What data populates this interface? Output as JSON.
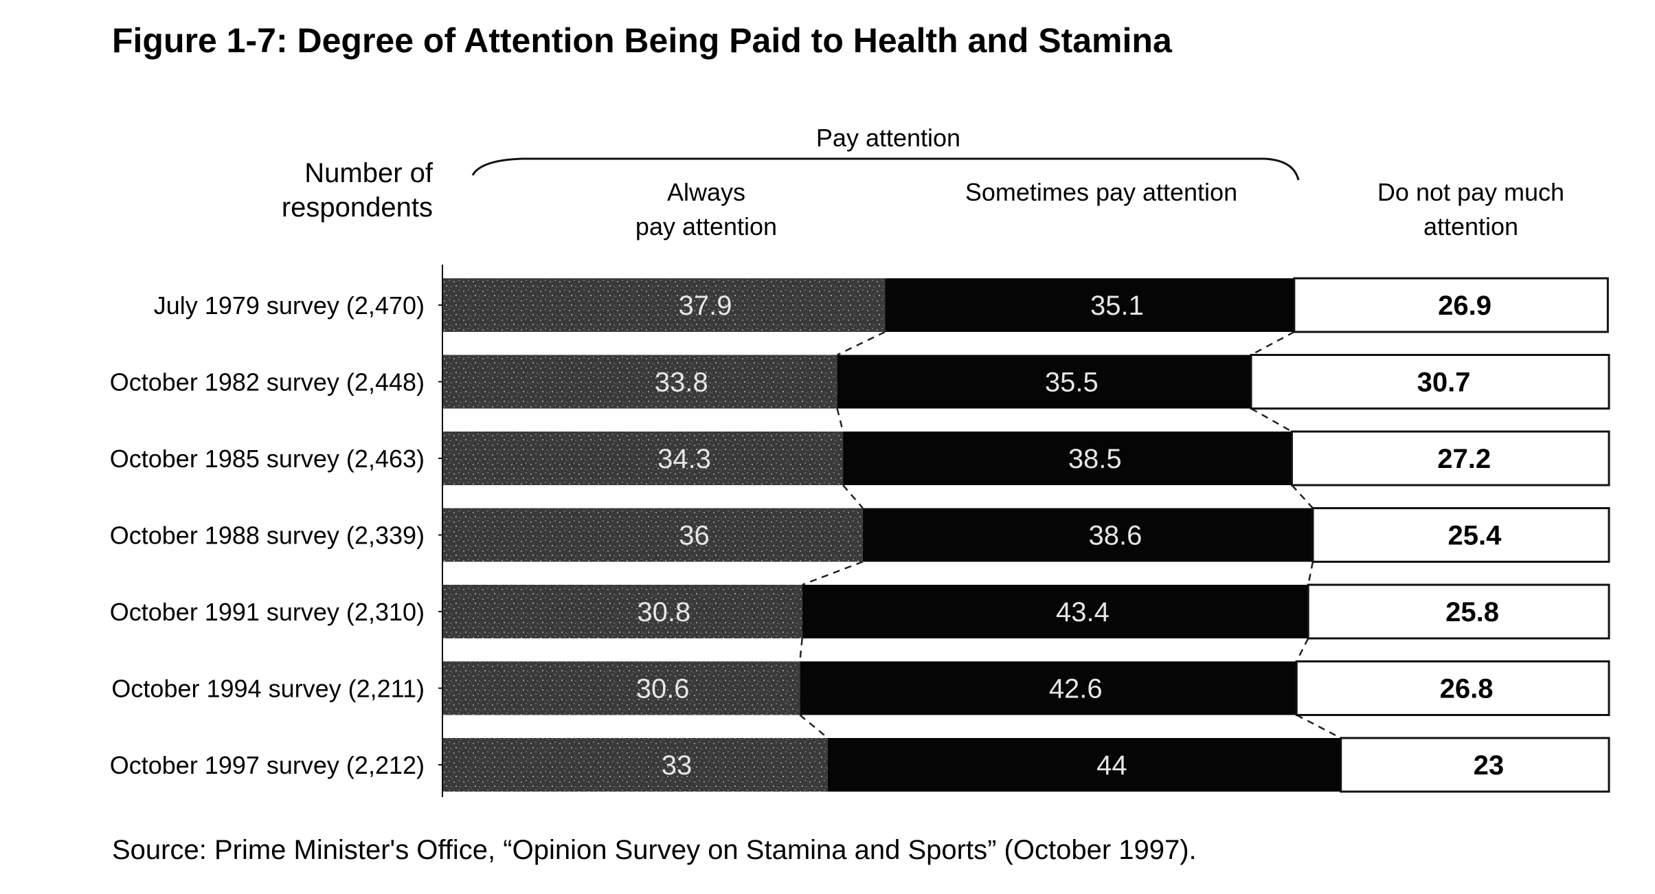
{
  "title": "Figure 1-7: Degree of Attention Being Paid to Health and Stamina",
  "source": "Source: Prime Minister's Office, “Opinion Survey on Stamina and Sports” (October 1997).",
  "colors": {
    "always": "#3a3a3a",
    "sometimes": "#050505",
    "not_much": "#ffffff",
    "outline": "#111111",
    "label_light": "#e6e6e6"
  },
  "chart_data": {
    "type": "bar",
    "orientation": "horizontal",
    "stacked": true,
    "percent": true,
    "row_header": "Number of respondents",
    "group_label": "Pay attention",
    "categories": [
      "July 1979 survey (2,470)",
      "October 1982 survey (2,448)",
      "October 1985 survey (2,463)",
      "October 1988 survey (2,339)",
      "October 1991 survey (2,310)",
      "October 1994 survey (2,211)",
      "October 1997 survey (2,212)"
    ],
    "series": [
      {
        "name": "Always pay attention",
        "values": [
          37.9,
          33.8,
          34.3,
          36,
          30.8,
          30.6,
          33
        ]
      },
      {
        "name": "Sometimes pay attention",
        "values": [
          35.1,
          35.5,
          38.5,
          38.6,
          43.4,
          42.6,
          44
        ]
      },
      {
        "name": "Do not pay much attention",
        "values": [
          26.9,
          30.7,
          27.2,
          25.4,
          25.8,
          26.8,
          23
        ]
      }
    ],
    "xlim": [
      0,
      100
    ]
  }
}
